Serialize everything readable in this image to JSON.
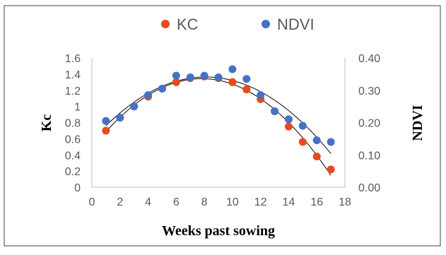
{
  "chart_data": {
    "type": "scatter",
    "xlabel": "Weeks past sowing",
    "ylabel": "Kc",
    "y2label": "NDVI",
    "xlim": [
      0,
      18
    ],
    "xticks": [
      0,
      2,
      4,
      6,
      8,
      10,
      12,
      14,
      16,
      18
    ],
    "ylim": [
      0,
      1.6
    ],
    "yticks": [
      "0",
      "0.2",
      "0.4",
      "0.6",
      "0.8",
      "1",
      "1.2",
      "1.4",
      "1.6"
    ],
    "y2lim": [
      0,
      0.4
    ],
    "y2ticks": [
      "0.00",
      "0.10",
      "0.20",
      "0.30",
      "0.40"
    ],
    "legend_position": "top",
    "grid": false,
    "series": [
      {
        "name": "KC",
        "axis": "left",
        "color": "#e84a1c",
        "x": [
          1,
          2,
          3,
          4,
          5,
          6,
          7,
          8,
          9,
          10,
          11,
          12,
          13,
          14,
          15,
          16,
          17
        ],
        "values": [
          0.7,
          0.86,
          1.0,
          1.12,
          1.22,
          1.3,
          1.35,
          1.37,
          1.35,
          1.3,
          1.21,
          1.09,
          0.94,
          0.75,
          0.56,
          0.38,
          0.22
        ],
        "trendline": "polynomial-2"
      },
      {
        "name": "NDVI",
        "axis": "right",
        "color": "#4472c4",
        "x": [
          1,
          2,
          3,
          4,
          5,
          6,
          7,
          8,
          9,
          10,
          11,
          12,
          13,
          14,
          15,
          16,
          17
        ],
        "values": [
          0.205,
          0.215,
          0.25,
          0.285,
          0.305,
          0.345,
          0.34,
          0.345,
          0.34,
          0.365,
          0.335,
          0.285,
          0.235,
          0.21,
          0.19,
          0.145,
          0.14
        ],
        "trendline": "polynomial-2"
      }
    ]
  }
}
